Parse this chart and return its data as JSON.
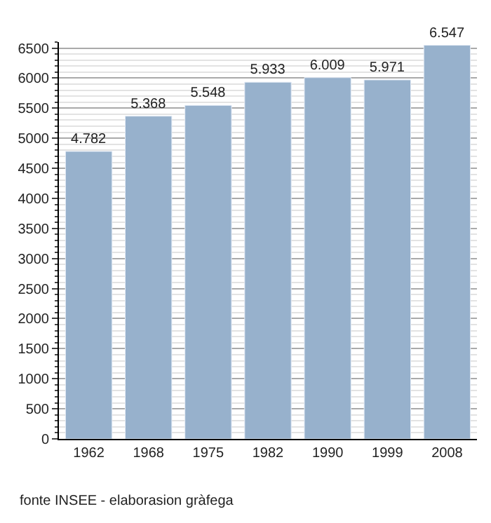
{
  "chart_data": {
    "type": "bar",
    "categories": [
      "1962",
      "1968",
      "1975",
      "1982",
      "1990",
      "1999",
      "2008"
    ],
    "values": [
      4782,
      5368,
      5548,
      5933,
      6009,
      5971,
      6547
    ],
    "value_labels": [
      "4.782",
      "5.368",
      "5.548",
      "5.933",
      "6.009",
      "5.971",
      "6.547"
    ],
    "color": "#97b1cc",
    "ylim": [
      0,
      6600
    ],
    "yticks": [
      0,
      500,
      1000,
      1500,
      2000,
      2500,
      3000,
      3500,
      4000,
      4500,
      5000,
      5500,
      6000,
      6500
    ],
    "grid": true,
    "legend": false,
    "annotations": [
      "fonte INSEE - elaborasion gràfega"
    ]
  }
}
